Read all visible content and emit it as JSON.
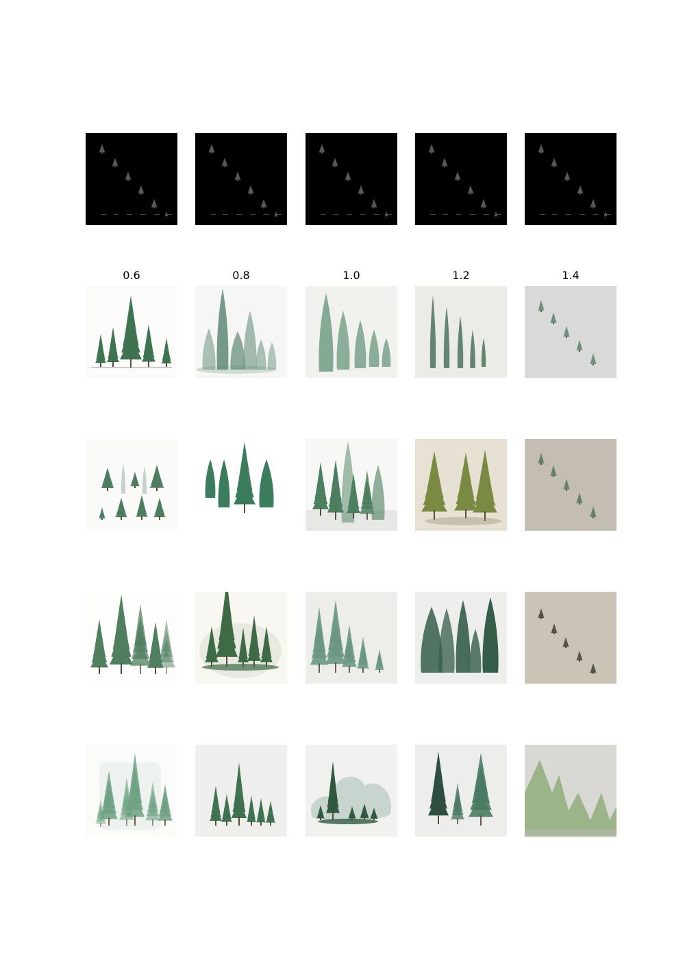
{
  "column_labels": [
    "0.6",
    "0.8",
    "1.0",
    "1.2",
    "1.4"
  ],
  "rows": [
    {
      "name": "control-image-row",
      "cells": [
        {
          "bg": "#000000",
          "style": "control"
        },
        {
          "bg": "#000000",
          "style": "control"
        },
        {
          "bg": "#000000",
          "style": "control"
        },
        {
          "bg": "#000000",
          "style": "control"
        },
        {
          "bg": "#000000",
          "style": "control"
        }
      ]
    },
    {
      "name": "sample-row-1",
      "cells": [
        {
          "bg": "#fbfbfa",
          "style": "spruce-group",
          "color": "#3f7250"
        },
        {
          "bg": "#f6f6f4",
          "style": "watercolor-spires",
          "color": "#5e8a75"
        },
        {
          "bg": "#f1f1ee",
          "style": "descending-spires",
          "color": "#5f9177"
        },
        {
          "bg": "#ebece7",
          "style": "tall-strokes",
          "color": "#557a64"
        },
        {
          "bg": "#d9d9d9",
          "style": "diagonal-small",
          "color": "#6f8f7e"
        }
      ]
    },
    {
      "name": "sample-row-2",
      "cells": [
        {
          "bg": "#fafaf9",
          "style": "scattered",
          "color": "#4d7c60"
        },
        {
          "bg": "#ffffff",
          "style": "tall-pines",
          "color": "#3c7c5e"
        },
        {
          "bg": "#f7f7f5",
          "style": "mixed-forest",
          "color": "#4c7f5f"
        },
        {
          "bg": "#e6e1d2",
          "style": "olive-trees",
          "color": "#7b8a42"
        },
        {
          "bg": "#c4bdb3",
          "style": "diagonal-small",
          "color": "#66806d"
        }
      ]
    },
    {
      "name": "sample-row-3",
      "cells": [
        {
          "bg": "#fdfdfc",
          "style": "dense-forest",
          "color": "#4f7f5f"
        },
        {
          "bg": "#f8f7f1",
          "style": "misty-grove",
          "color": "#3e6a45"
        },
        {
          "bg": "#ededea",
          "style": "descending-forest",
          "color": "#6a9784"
        },
        {
          "bg": "#eeefec",
          "style": "dark-cypress",
          "color": "#355d4a"
        },
        {
          "bg": "#c9c4b5",
          "style": "diagonal-tiny",
          "color": "#52544a"
        }
      ]
    },
    {
      "name": "sample-row-4",
      "cells": [
        {
          "bg": "#fbfbfa",
          "style": "ghost-forest",
          "color": "#6ea184"
        },
        {
          "bg": "#efefed",
          "style": "small-grove",
          "color": "#3f7250"
        },
        {
          "bg": "#f1f1ef",
          "style": "cloud-grove",
          "color": "#2f5a40"
        },
        {
          "bg": "#ededeb",
          "style": "two-spruces",
          "color": "#4a7a62"
        },
        {
          "bg": "#d9d8d4",
          "style": "pencil-triangles",
          "color": "#8fae7c"
        }
      ]
    }
  ]
}
